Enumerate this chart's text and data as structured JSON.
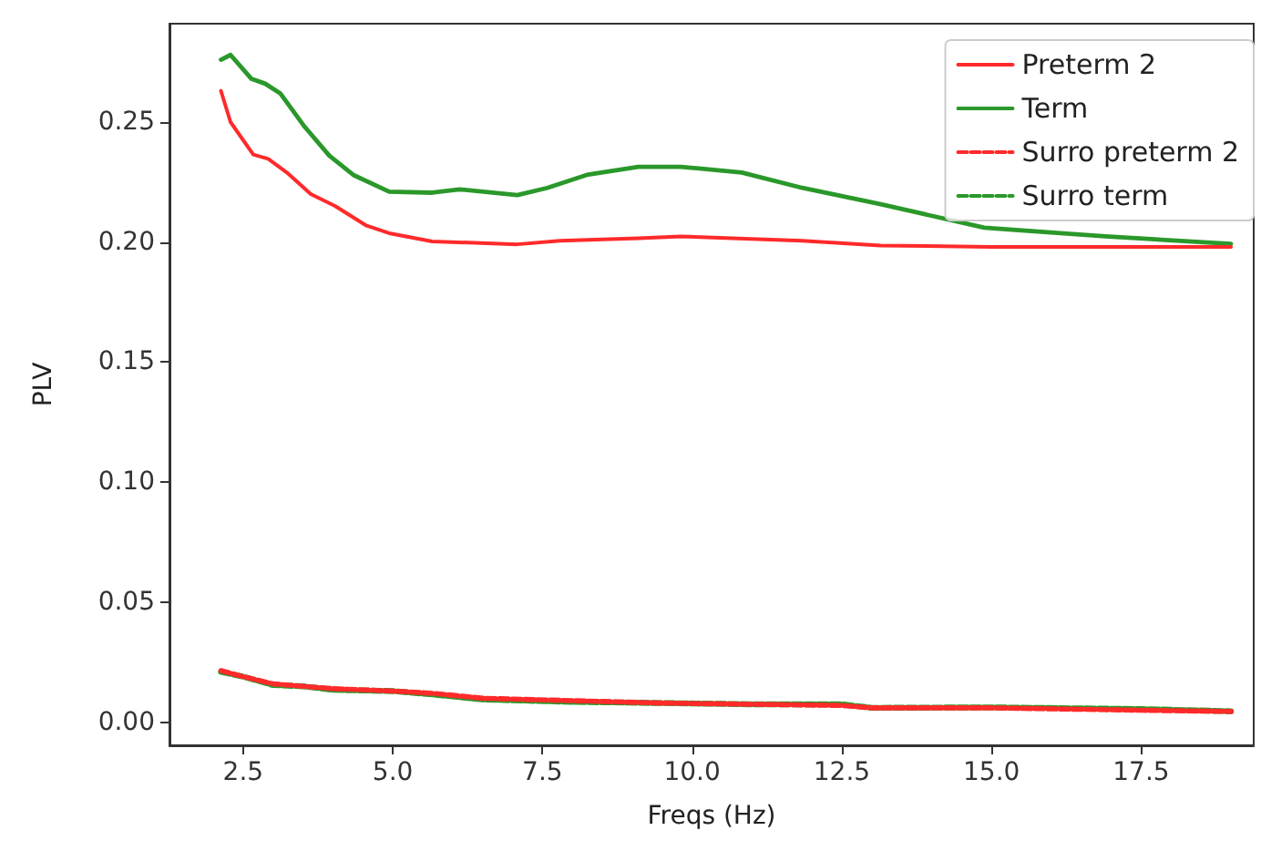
{
  "chart_data": {
    "type": "line",
    "xlabel": "Freqs (Hz)",
    "ylabel": "PLV",
    "xlim": [
      1.27,
      19.38
    ],
    "ylim": [
      -0.0096,
      0.291
    ],
    "xticks": [
      2.5,
      {
        "value": 5,
        "label": "5.0"
      },
      7.5,
      {
        "value": 10,
        "label": "10.0"
      },
      12.5,
      {
        "value": 15,
        "label": "15.0"
      },
      17.5
    ],
    "yticks": [
      {
        "value": 0,
        "label": "0.00"
      },
      0.05,
      {
        "value": 0.1,
        "label": "0.10"
      },
      0.15,
      {
        "value": 0.2,
        "label": "0.20"
      },
      0.25
    ],
    "grid": false,
    "legend": "top right",
    "marker": "none",
    "series": [
      {
        "name": "Preterm 2",
        "color": "#ff2a2a",
        "line_style": "solid",
        "x": [
          2.13,
          2.29,
          2.67,
          2.92,
          3.23,
          3.63,
          4.04,
          4.55,
          4.96,
          5.66,
          7.08,
          7.79,
          9.1,
          9.81,
          11.84,
          13.15,
          15.0,
          17.0,
          19.0
        ],
        "values": [
          0.263,
          0.25,
          0.2365,
          0.2347,
          0.229,
          0.22,
          0.215,
          0.207,
          0.2036,
          0.2003,
          0.1991,
          0.2006,
          0.2016,
          0.2024,
          0.2006,
          0.1986,
          0.198,
          0.198,
          0.198
        ]
      },
      {
        "name": "Term",
        "color": "#2a982a",
        "line_style": "solid",
        "x": [
          2.13,
          2.29,
          2.64,
          2.87,
          3.12,
          3.53,
          3.94,
          4.34,
          4.94,
          5.66,
          6.11,
          7.08,
          7.58,
          8.24,
          9.1,
          9.81,
          10.83,
          11.84,
          13.15,
          14.88,
          16.9,
          19.0
        ],
        "values": [
          0.276,
          0.278,
          0.268,
          0.266,
          0.262,
          0.248,
          0.236,
          0.228,
          0.221,
          0.2206,
          0.222,
          0.2196,
          0.2226,
          0.228,
          0.2314,
          0.2314,
          0.229,
          0.2226,
          0.2158,
          0.206,
          0.2024,
          0.1993
        ]
      },
      {
        "name": "Surro preterm 2",
        "color": "#ff2a2a",
        "line_style": "dashed",
        "x": [
          2.13,
          2.5,
          3.0,
          3.5,
          4.0,
          5.0,
          5.7,
          6.5,
          8.0,
          9.5,
          11.0,
          12.5,
          13.0,
          15.0,
          17.5,
          19.0
        ],
        "values": [
          0.0215,
          0.019,
          0.016,
          0.015,
          0.014,
          0.013,
          0.012,
          0.01,
          0.009,
          0.008,
          0.0075,
          0.007,
          0.006,
          0.006,
          0.005,
          0.0045
        ]
      },
      {
        "name": "Surro term",
        "color": "#2a982a",
        "line_style": "dashed",
        "x": [
          2.13,
          2.5,
          3.0,
          3.5,
          4.0,
          5.0,
          5.7,
          6.5,
          8.0,
          9.5,
          11.0,
          12.5,
          13.0,
          15.0,
          17.5,
          19.0
        ],
        "values": [
          0.021,
          0.019,
          0.0155,
          0.015,
          0.0135,
          0.013,
          0.0115,
          0.0095,
          0.0085,
          0.008,
          0.0075,
          0.0075,
          0.006,
          0.0062,
          0.0055,
          0.0046
        ]
      }
    ]
  }
}
